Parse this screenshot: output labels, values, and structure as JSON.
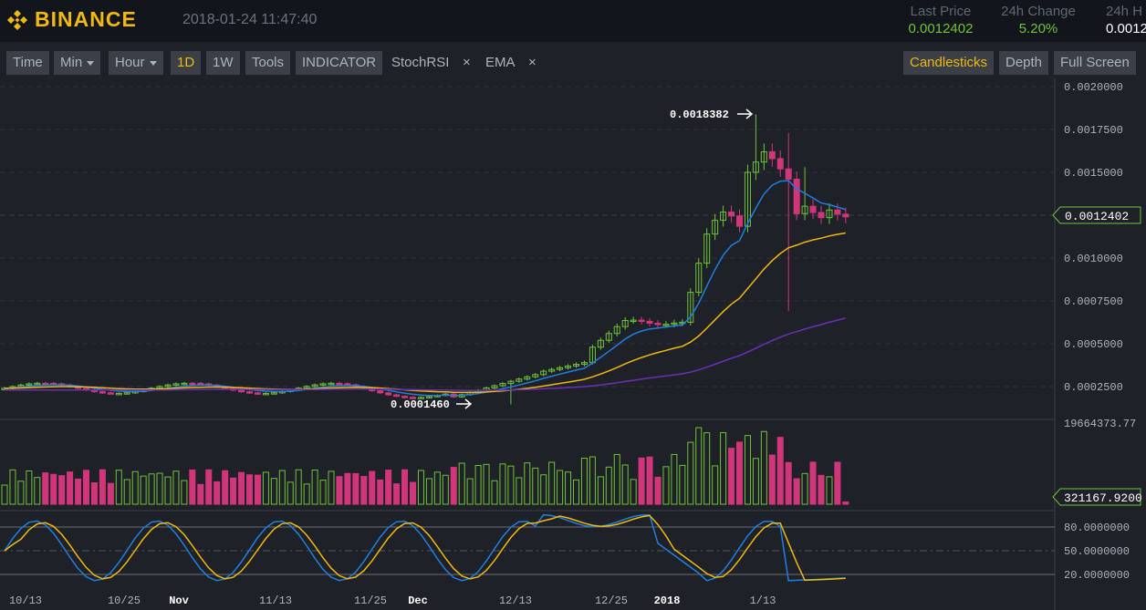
{
  "header": {
    "brand": "BINANCE",
    "datetime": "2018-01-24 11:47:40",
    "last_price_label": "Last Price",
    "last_price_value": "0.0012402",
    "change_label": "24h Change",
    "change_value": "5.20%",
    "high_label": "24h H",
    "high_value": "0.0012"
  },
  "toolbar": {
    "time": "Time",
    "min": "Min",
    "hour": "Hour",
    "d1": "1D",
    "w1": "1W",
    "tools": "Tools",
    "indicator": "INDICATOR",
    "stochrsi": "StochRSI",
    "ema": "EMA",
    "remove": "×",
    "candlesticks": "Candlesticks",
    "depth": "Depth",
    "fullscreen": "Full Screen"
  },
  "chart": {
    "price_ticks": [
      "0.0020000",
      "0.0017500",
      "0.0015000",
      "0.0012402",
      "0.0010000",
      "0.0007500",
      "0.0005000",
      "0.0002500"
    ],
    "current_price_label": "0.0012402",
    "high_annotation": "0.0018382",
    "low_annotation": "0.0001460",
    "volume_max": "19664373.77",
    "volume_current": "321167.9200",
    "stoch_ticks": [
      "80.0000000",
      "50.0000000",
      "20.0000000"
    ],
    "x_ticks": [
      "10/13",
      "10/25",
      "Nov",
      "11/13",
      "11/25",
      "Dec",
      "12/13",
      "12/25",
      "2018",
      "1/13"
    ],
    "colors": {
      "up": "#70c236",
      "down": "#d2367a",
      "ema_short": "#1f7fe0",
      "ema_mid": "#f0b90b",
      "ema_long": "#6a2fb5"
    }
  }
}
